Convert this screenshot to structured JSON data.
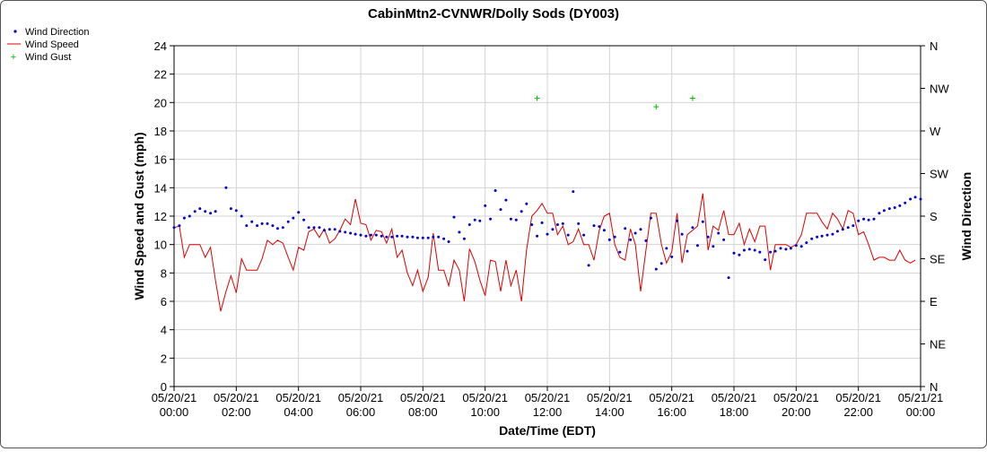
{
  "chart_data": {
    "type": "line",
    "title": "CabinMtn2-CVNWR/Dolly Sods (DY003)",
    "xlabel": "Date/Time (EDT)",
    "ylabel_left": "Wind Speed and Gust (mph)",
    "ylabel_right": "Wind Direction",
    "x_range_hours": [
      0,
      24
    ],
    "ylim_left": [
      0,
      24
    ],
    "ylim_right_deg": [
      0,
      360
    ],
    "grid": true,
    "legend_position": "top-left",
    "y_ticks_left": [
      "0",
      "2",
      "4",
      "6",
      "8",
      "10",
      "12",
      "14",
      "16",
      "18",
      "20",
      "22",
      "24"
    ],
    "y_ticks_right": [
      "N",
      "NE",
      "E",
      "SE",
      "S",
      "SW",
      "W",
      "NW",
      "N"
    ],
    "x_ticks": [
      {
        "hour": 0,
        "date": "05/20/21",
        "time": "00:00"
      },
      {
        "hour": 2,
        "date": "05/20/21",
        "time": "02:00"
      },
      {
        "hour": 4,
        "date": "05/20/21",
        "time": "04:00"
      },
      {
        "hour": 6,
        "date": "05/20/21",
        "time": "06:00"
      },
      {
        "hour": 8,
        "date": "05/20/21",
        "time": "08:00"
      },
      {
        "hour": 10,
        "date": "05/20/21",
        "time": "10:00"
      },
      {
        "hour": 12,
        "date": "05/20/21",
        "time": "12:00"
      },
      {
        "hour": 14,
        "date": "05/20/21",
        "time": "14:00"
      },
      {
        "hour": 16,
        "date": "05/20/21",
        "time": "16:00"
      },
      {
        "hour": 18,
        "date": "05/20/21",
        "time": "18:00"
      },
      {
        "hour": 20,
        "date": "05/20/21",
        "time": "20:00"
      },
      {
        "hour": 22,
        "date": "05/20/21",
        "time": "22:00"
      },
      {
        "hour": 24,
        "date": "05/21/21",
        "time": "00:00"
      }
    ],
    "series": [
      {
        "name": "Wind Direction",
        "kind": "points",
        "color": "#0000cc",
        "unit": "degrees",
        "points": [
          [
            0.0,
            168
          ],
          [
            0.17,
            170
          ],
          [
            0.33,
            178
          ],
          [
            0.5,
            180
          ],
          [
            0.67,
            185
          ],
          [
            0.83,
            188
          ],
          [
            1.0,
            185
          ],
          [
            1.17,
            183
          ],
          [
            1.33,
            185
          ],
          [
            1.67,
            210
          ],
          [
            1.83,
            188
          ],
          [
            2.0,
            186
          ],
          [
            2.17,
            180
          ],
          [
            2.33,
            170
          ],
          [
            2.5,
            174
          ],
          [
            2.67,
            170
          ],
          [
            2.83,
            172
          ],
          [
            3.0,
            172
          ],
          [
            3.17,
            170
          ],
          [
            3.33,
            167
          ],
          [
            3.5,
            168
          ],
          [
            3.67,
            174
          ],
          [
            3.83,
            178
          ],
          [
            4.0,
            184
          ],
          [
            4.17,
            176
          ],
          [
            4.33,
            168
          ],
          [
            4.5,
            168
          ],
          [
            4.67,
            168
          ],
          [
            4.83,
            165
          ],
          [
            5.0,
            166
          ],
          [
            5.17,
            166
          ],
          [
            5.33,
            164
          ],
          [
            5.5,
            163
          ],
          [
            5.67,
            162
          ],
          [
            5.83,
            161
          ],
          [
            6.0,
            160
          ],
          [
            6.17,
            159
          ],
          [
            6.33,
            160
          ],
          [
            6.5,
            160
          ],
          [
            6.67,
            159
          ],
          [
            6.83,
            158
          ],
          [
            7.0,
            158
          ],
          [
            7.17,
            159
          ],
          [
            7.33,
            159
          ],
          [
            7.5,
            158
          ],
          [
            7.67,
            158
          ],
          [
            7.83,
            157
          ],
          [
            8.0,
            157
          ],
          [
            8.17,
            157
          ],
          [
            8.33,
            158
          ],
          [
            8.5,
            158
          ],
          [
            8.67,
            156
          ],
          [
            8.83,
            153
          ],
          [
            9.0,
            179
          ],
          [
            9.17,
            163
          ],
          [
            9.33,
            156
          ],
          [
            9.5,
            171
          ],
          [
            9.67,
            176
          ],
          [
            9.83,
            175
          ],
          [
            10.0,
            191
          ],
          [
            10.17,
            177
          ],
          [
            10.33,
            207
          ],
          [
            10.5,
            187
          ],
          [
            10.67,
            197
          ],
          [
            10.83,
            177
          ],
          [
            11.0,
            176
          ],
          [
            11.17,
            185
          ],
          [
            11.33,
            193
          ],
          [
            11.5,
            171
          ],
          [
            11.67,
            159
          ],
          [
            11.83,
            173
          ],
          [
            12.0,
            161
          ],
          [
            12.17,
            166
          ],
          [
            12.33,
            171
          ],
          [
            12.5,
            172
          ],
          [
            12.67,
            160
          ],
          [
            12.83,
            206
          ],
          [
            13.0,
            172
          ],
          [
            13.17,
            160
          ],
          [
            13.33,
            128
          ],
          [
            13.5,
            170
          ],
          [
            13.67,
            169
          ],
          [
            13.83,
            165
          ],
          [
            14.0,
            155
          ],
          [
            14.17,
            158
          ],
          [
            14.33,
            142
          ],
          [
            14.5,
            167
          ],
          [
            14.67,
            155
          ],
          [
            14.83,
            162
          ],
          [
            15.0,
            166
          ],
          [
            15.17,
            154
          ],
          [
            15.33,
            178
          ],
          [
            15.5,
            124
          ],
          [
            15.67,
            130
          ],
          [
            15.83,
            146
          ],
          [
            16.0,
            137
          ],
          [
            16.17,
            175
          ],
          [
            16.33,
            161
          ],
          [
            16.5,
            143
          ],
          [
            16.67,
            168
          ],
          [
            16.83,
            149
          ],
          [
            17.0,
            174
          ],
          [
            17.17,
            158
          ],
          [
            17.33,
            148
          ],
          [
            17.5,
            162
          ],
          [
            17.67,
            155
          ],
          [
            17.83,
            115
          ],
          [
            18.0,
            141
          ],
          [
            18.17,
            139
          ],
          [
            18.33,
            144
          ],
          [
            18.5,
            145
          ],
          [
            18.67,
            144
          ],
          [
            18.83,
            142
          ],
          [
            19.0,
            134
          ],
          [
            19.17,
            142
          ],
          [
            19.33,
            143
          ],
          [
            19.5,
            146
          ],
          [
            19.67,
            145
          ],
          [
            19.83,
            146
          ],
          [
            20.0,
            149
          ],
          [
            20.17,
            148
          ],
          [
            20.33,
            152
          ],
          [
            20.5,
            156
          ],
          [
            20.67,
            158
          ],
          [
            20.83,
            159
          ],
          [
            21.0,
            160
          ],
          [
            21.17,
            161
          ],
          [
            21.33,
            164
          ],
          [
            21.5,
            166
          ],
          [
            21.67,
            168
          ],
          [
            21.83,
            170
          ],
          [
            22.0,
            175
          ],
          [
            22.17,
            177
          ],
          [
            22.33,
            176
          ],
          [
            22.5,
            177
          ],
          [
            22.67,
            183
          ],
          [
            22.83,
            186
          ],
          [
            23.0,
            188
          ],
          [
            23.17,
            189
          ],
          [
            23.33,
            191
          ],
          [
            23.5,
            194
          ],
          [
            23.67,
            198
          ],
          [
            23.83,
            200
          ],
          [
            24.0,
            198
          ]
        ]
      },
      {
        "name": "Wind Speed",
        "kind": "line",
        "color": "#dd0000",
        "unit": "mph",
        "points": [
          [
            0.0,
            11.2
          ],
          [
            0.17,
            11.3
          ],
          [
            0.33,
            9.1
          ],
          [
            0.5,
            10.0
          ],
          [
            0.67,
            10.0
          ],
          [
            0.83,
            10.0
          ],
          [
            1.0,
            9.1
          ],
          [
            1.17,
            9.8
          ],
          [
            1.33,
            7.5
          ],
          [
            1.5,
            5.3
          ],
          [
            1.67,
            6.7
          ],
          [
            1.83,
            7.8
          ],
          [
            2.0,
            6.6
          ],
          [
            2.17,
            9.0
          ],
          [
            2.33,
            8.2
          ],
          [
            2.5,
            8.2
          ],
          [
            2.67,
            8.2
          ],
          [
            2.83,
            9.0
          ],
          [
            3.0,
            10.3
          ],
          [
            3.17,
            10.0
          ],
          [
            3.33,
            10.3
          ],
          [
            3.5,
            10.1
          ],
          [
            3.67,
            9.1
          ],
          [
            3.83,
            8.2
          ],
          [
            4.0,
            9.8
          ],
          [
            4.17,
            9.6
          ],
          [
            4.33,
            10.9
          ],
          [
            4.5,
            11.1
          ],
          [
            4.67,
            10.5
          ],
          [
            4.83,
            11.1
          ],
          [
            5.0,
            10.1
          ],
          [
            5.17,
            10.4
          ],
          [
            5.33,
            11.0
          ],
          [
            5.5,
            11.8
          ],
          [
            5.67,
            11.4
          ],
          [
            5.83,
            13.2
          ],
          [
            6.0,
            11.5
          ],
          [
            6.17,
            11.4
          ],
          [
            6.33,
            10.3
          ],
          [
            6.5,
            11.0
          ],
          [
            6.67,
            10.9
          ],
          [
            6.83,
            10.1
          ],
          [
            7.0,
            11.1
          ],
          [
            7.17,
            9.1
          ],
          [
            7.33,
            9.6
          ],
          [
            7.5,
            8.0
          ],
          [
            7.67,
            7.1
          ],
          [
            7.83,
            8.2
          ],
          [
            8.0,
            6.7
          ],
          [
            8.17,
            7.7
          ],
          [
            8.33,
            10.8
          ],
          [
            8.5,
            8.2
          ],
          [
            8.67,
            8.2
          ],
          [
            8.83,
            7.1
          ],
          [
            9.0,
            8.9
          ],
          [
            9.17,
            8.2
          ],
          [
            9.33,
            6.0
          ],
          [
            9.5,
            9.7
          ],
          [
            9.67,
            8.8
          ],
          [
            9.83,
            7.5
          ],
          [
            10.0,
            6.4
          ],
          [
            10.17,
            8.9
          ],
          [
            10.33,
            8.8
          ],
          [
            10.5,
            6.7
          ],
          [
            10.67,
            8.9
          ],
          [
            10.83,
            7.1
          ],
          [
            11.0,
            8.2
          ],
          [
            11.17,
            6.0
          ],
          [
            11.33,
            9.6
          ],
          [
            11.5,
            12.0
          ],
          [
            11.67,
            12.4
          ],
          [
            11.83,
            12.9
          ],
          [
            12.0,
            12.2
          ],
          [
            12.17,
            12.2
          ],
          [
            12.33,
            10.7
          ],
          [
            12.5,
            11.3
          ],
          [
            12.67,
            10.0
          ],
          [
            12.83,
            10.2
          ],
          [
            13.0,
            11.1
          ],
          [
            13.17,
            10.0
          ],
          [
            13.33,
            10.0
          ],
          [
            13.5,
            8.9
          ],
          [
            13.67,
            11.0
          ],
          [
            13.83,
            12.0
          ],
          [
            14.0,
            12.2
          ],
          [
            14.17,
            10.0
          ],
          [
            14.33,
            9.1
          ],
          [
            14.5,
            8.9
          ],
          [
            14.67,
            11.1
          ],
          [
            14.83,
            10.0
          ],
          [
            15.0,
            6.7
          ],
          [
            15.17,
            9.6
          ],
          [
            15.33,
            12.2
          ],
          [
            15.5,
            12.2
          ],
          [
            15.67,
            10.0
          ],
          [
            15.83,
            8.7
          ],
          [
            16.0,
            9.5
          ],
          [
            16.17,
            12.2
          ],
          [
            16.33,
            8.7
          ],
          [
            16.5,
            10.7
          ],
          [
            16.67,
            11.0
          ],
          [
            16.83,
            11.3
          ],
          [
            17.0,
            13.6
          ],
          [
            17.17,
            9.6
          ],
          [
            17.33,
            11.3
          ],
          [
            17.5,
            11.0
          ],
          [
            17.67,
            12.4
          ],
          [
            17.83,
            10.7
          ],
          [
            18.0,
            10.7
          ],
          [
            18.17,
            11.5
          ],
          [
            18.33,
            10.0
          ],
          [
            18.5,
            11.1
          ],
          [
            18.67,
            10.2
          ],
          [
            18.83,
            11.3
          ],
          [
            19.0,
            11.3
          ],
          [
            19.17,
            8.2
          ],
          [
            19.33,
            10.0
          ],
          [
            19.5,
            10.0
          ],
          [
            19.67,
            10.0
          ],
          [
            19.83,
            9.8
          ],
          [
            20.0,
            10.0
          ],
          [
            20.17,
            10.7
          ],
          [
            20.33,
            12.2
          ],
          [
            20.5,
            12.2
          ],
          [
            20.67,
            12.2
          ],
          [
            20.83,
            11.6
          ],
          [
            21.0,
            11.1
          ],
          [
            21.17,
            12.2
          ],
          [
            21.33,
            11.8
          ],
          [
            21.5,
            11.1
          ],
          [
            21.67,
            12.4
          ],
          [
            21.83,
            12.2
          ],
          [
            22.0,
            10.7
          ],
          [
            22.17,
            10.9
          ],
          [
            22.33,
            10.0
          ],
          [
            22.5,
            8.9
          ],
          [
            22.67,
            9.1
          ],
          [
            22.83,
            9.1
          ],
          [
            23.0,
            8.9
          ],
          [
            23.17,
            8.9
          ],
          [
            23.33,
            9.6
          ],
          [
            23.5,
            8.9
          ],
          [
            23.67,
            8.7
          ],
          [
            23.83,
            8.9
          ]
        ]
      },
      {
        "name": "Wind Gust",
        "kind": "markers",
        "color": "#00bb00",
        "unit": "mph",
        "points": [
          [
            11.67,
            20.3
          ],
          [
            15.5,
            19.7
          ],
          [
            16.67,
            20.3
          ]
        ]
      }
    ]
  }
}
